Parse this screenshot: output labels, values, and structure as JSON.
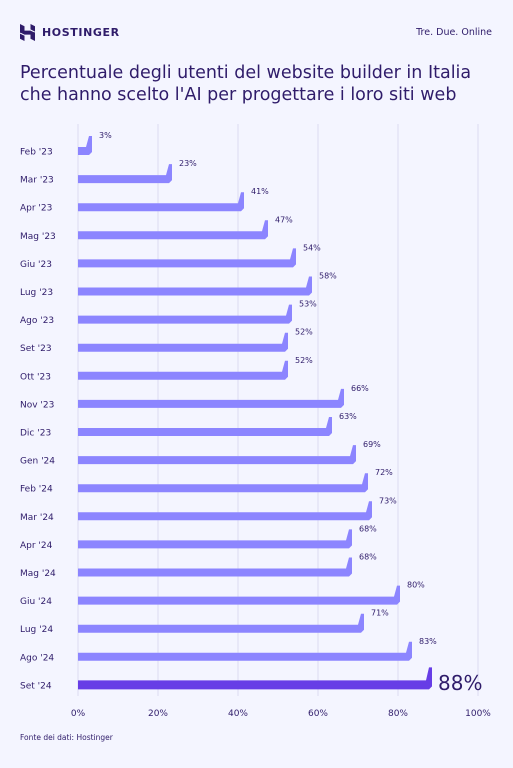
{
  "header": {
    "logo_text": "HOSTINGER",
    "right_text": "Tre. Due. Online"
  },
  "title": "Percentuale degli utenti del website builder in Italia che hanno scelto l'AI per progettare i loro siti web",
  "footer": "Fonte dei dati: Hostinger",
  "colors": {
    "background": "#f4f5ff",
    "bar": "#8c85ff",
    "bar_highlight": "#673de6",
    "text": "#2f1c6a",
    "grid": "#dcdcf2"
  },
  "chart_data": {
    "type": "bar",
    "orientation": "horizontal",
    "categories": [
      "Feb '23",
      "Mar '23",
      "Apr '23",
      "Mag '23",
      "Giu '23",
      "Lug '23",
      "Ago '23",
      "Set '23",
      "Ott '23",
      "Nov '23",
      "Dic '23",
      "Gen '24",
      "Feb '24",
      "Mar '24",
      "Apr '24",
      "Mag '24",
      "Giu '24",
      "Lug '24",
      "Ago '24",
      "Set '24"
    ],
    "values": [
      3,
      23,
      41,
      47,
      54,
      58,
      53,
      52,
      52,
      66,
      63,
      69,
      72,
      73,
      68,
      68,
      80,
      71,
      83,
      88
    ],
    "data_labels": [
      "3%",
      "23%",
      "41%",
      "47%",
      "54%",
      "58%",
      "53%",
      "52%",
      "52%",
      "66%",
      "63%",
      "69%",
      "72%",
      "73%",
      "68%",
      "68%",
      "80%",
      "71%",
      "83%",
      "88%"
    ],
    "highlight_index": 19,
    "xlim": [
      0,
      100
    ],
    "x_ticks": [
      0,
      20,
      40,
      60,
      80,
      100
    ],
    "x_tick_labels": [
      "0%",
      "20%",
      "40%",
      "60%",
      "80%",
      "100%"
    ],
    "grid": true
  }
}
